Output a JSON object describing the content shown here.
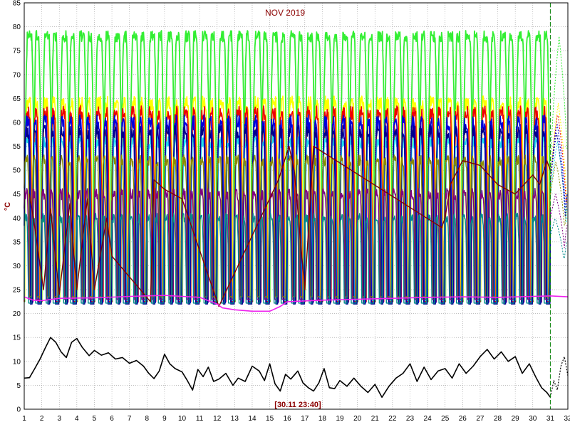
{
  "chart_data": {
    "type": "line",
    "title": "NOV 2019",
    "ylabel": "°C",
    "timestamp": "[30.11 23:40]",
    "xlim": [
      1,
      32
    ],
    "ylim": [
      0,
      85
    ],
    "x_ticks": [
      1,
      2,
      3,
      4,
      5,
      6,
      7,
      8,
      9,
      10,
      11,
      12,
      13,
      14,
      15,
      16,
      17,
      18,
      19,
      20,
      21,
      22,
      23,
      24,
      25,
      26,
      27,
      28,
      29,
      30,
      31,
      32
    ],
    "y_ticks": [
      0,
      5,
      10,
      15,
      20,
      25,
      30,
      35,
      40,
      45,
      50,
      55,
      60,
      65,
      70,
      75,
      80,
      85
    ],
    "grid": true,
    "grid_style": "dotted",
    "cursor_x": 31,
    "colors": {
      "frame": "#000000",
      "grid": "#9a9a9a",
      "cursor": "#008000"
    },
    "series": [
      {
        "color": "#33ee33",
        "base": 22.5,
        "peak": 78,
        "width": 0.55,
        "noise": 1.2,
        "lw": 1.8,
        "phase": 0.0
      },
      {
        "color": "#ffff00",
        "base": 23,
        "peak": 64,
        "width": 0.45,
        "noise": 1.5,
        "lw": 1.6,
        "phase": 0.05
      },
      {
        "color": "#ee0000",
        "base": 22.5,
        "peak": 62,
        "width": 0.42,
        "noise": 1.5,
        "lw": 1.6,
        "phase": 0.08
      },
      {
        "color": "#22ddee",
        "base": 22.8,
        "peak": 56,
        "width": 0.4,
        "noise": 1.4,
        "lw": 1.6,
        "phase": 0.1
      },
      {
        "color": "#0000dd",
        "base": 22.3,
        "peak": 60,
        "width": 0.38,
        "noise": 1.6,
        "lw": 1.6,
        "phase": 0.12
      },
      {
        "color": "#00008b",
        "base": 22,
        "peak": 58,
        "width": 0.36,
        "noise": 1.4,
        "lw": 1.4,
        "phase": 0.14
      },
      {
        "color": "#8b8b00",
        "base": 23.5,
        "peak": 52,
        "width": 0.35,
        "noise": 1.2,
        "lw": 1.4,
        "phase": 0.18
      },
      {
        "color": "#800080",
        "base": 23,
        "peak": 45,
        "width": 0.33,
        "noise": 1.2,
        "lw": 1.4,
        "phase": 0.2
      },
      {
        "color": "#008b8b",
        "base": 22.2,
        "peak": 40,
        "width": 0.3,
        "noise": 1.0,
        "lw": 1.4,
        "phase": 0.22
      }
    ],
    "flat_series": {
      "color": "#ee22ee",
      "points": [
        [
          1,
          23.5
        ],
        [
          1.5,
          22.8
        ],
        [
          2,
          22.7
        ],
        [
          3,
          23.2
        ],
        [
          5,
          23.3
        ],
        [
          7,
          23.6
        ],
        [
          9,
          23.8
        ],
        [
          11,
          23.4
        ],
        [
          12,
          22
        ],
        [
          12.3,
          21.2
        ],
        [
          13,
          20.8
        ],
        [
          14,
          20.5
        ],
        [
          15,
          20.5
        ],
        [
          15.6,
          21.5
        ],
        [
          16,
          22.5
        ],
        [
          18,
          22.8
        ],
        [
          20,
          23
        ],
        [
          22,
          23.2
        ],
        [
          24,
          23.4
        ],
        [
          26,
          23.5
        ],
        [
          28,
          23.4
        ],
        [
          30,
          23.6
        ],
        [
          31,
          23.7
        ],
        [
          32,
          23.5
        ]
      ]
    },
    "maroon_series": {
      "color": "#800000",
      "points": [
        [
          1.3,
          45
        ],
        [
          1.6,
          38
        ],
        [
          2.1,
          25
        ],
        [
          2.5,
          42
        ],
        [
          3,
          24
        ],
        [
          3.6,
          43
        ],
        [
          4,
          25
        ],
        [
          4.6,
          44
        ],
        [
          5,
          25
        ],
        [
          5.7,
          40
        ],
        [
          6,
          32
        ],
        [
          8.2,
          22.5
        ],
        [
          8.4,
          48
        ],
        [
          9,
          46
        ],
        [
          10,
          44
        ],
        [
          12.1,
          21.5
        ],
        [
          15.5,
          48
        ],
        [
          16.1,
          55
        ],
        [
          16.4,
          50
        ],
        [
          17,
          25
        ],
        [
          17.5,
          55
        ],
        [
          24.8,
          38
        ],
        [
          25,
          40
        ],
        [
          25.3,
          47
        ],
        [
          26,
          52
        ],
        [
          27,
          51
        ],
        [
          28,
          47
        ],
        [
          29,
          45
        ],
        [
          30,
          49
        ],
        [
          30.4,
          47
        ],
        [
          30.8,
          52
        ],
        [
          31,
          50
        ]
      ]
    },
    "outside_temp": {
      "color": "#000000",
      "points": [
        [
          1,
          6.5
        ],
        [
          1.3,
          6.6
        ],
        [
          1.6,
          8.5
        ],
        [
          1.9,
          10.5
        ],
        [
          2.2,
          12.8
        ],
        [
          2.5,
          15
        ],
        [
          2.8,
          14
        ],
        [
          3.1,
          12
        ],
        [
          3.4,
          10.8
        ],
        [
          3.7,
          14
        ],
        [
          4,
          14.8
        ],
        [
          4.3,
          13
        ],
        [
          4.7,
          11.2
        ],
        [
          5,
          12.3
        ],
        [
          5.4,
          11.3
        ],
        [
          5.8,
          11.8
        ],
        [
          6.2,
          10.5
        ],
        [
          6.6,
          10.8
        ],
        [
          7,
          9.6
        ],
        [
          7.4,
          10.2
        ],
        [
          7.8,
          9
        ],
        [
          8.1,
          7.5
        ],
        [
          8.4,
          6.4
        ],
        [
          8.7,
          8
        ],
        [
          9,
          11.5
        ],
        [
          9.3,
          9.5
        ],
        [
          9.6,
          8.5
        ],
        [
          10,
          7.8
        ],
        [
          10.3,
          6
        ],
        [
          10.6,
          4
        ],
        [
          10.9,
          8.3
        ],
        [
          11.2,
          6.8
        ],
        [
          11.5,
          8.8
        ],
        [
          11.8,
          5.8
        ],
        [
          12.1,
          6.3
        ],
        [
          12.5,
          7.5
        ],
        [
          12.9,
          5
        ],
        [
          13.2,
          6.5
        ],
        [
          13.6,
          5.8
        ],
        [
          14,
          9
        ],
        [
          14.4,
          8
        ],
        [
          14.7,
          6
        ],
        [
          15,
          9.5
        ],
        [
          15.3,
          5.3
        ],
        [
          15.6,
          3.8
        ],
        [
          15.9,
          7.3
        ],
        [
          16.2,
          6.3
        ],
        [
          16.6,
          8
        ],
        [
          16.9,
          5.5
        ],
        [
          17.2,
          4.5
        ],
        [
          17.5,
          3.8
        ],
        [
          17.8,
          5.5
        ],
        [
          18.1,
          8.5
        ],
        [
          18.4,
          4.5
        ],
        [
          18.7,
          4.3
        ],
        [
          19,
          6
        ],
        [
          19.4,
          4.8
        ],
        [
          19.8,
          6.5
        ],
        [
          20.2,
          4.8
        ],
        [
          20.6,
          3.5
        ],
        [
          21,
          5.2
        ],
        [
          21.4,
          2.5
        ],
        [
          21.8,
          4.8
        ],
        [
          22.2,
          6.5
        ],
        [
          22.6,
          7.5
        ],
        [
          23,
          9.5
        ],
        [
          23.4,
          5.8
        ],
        [
          23.8,
          8.8
        ],
        [
          24.2,
          6.2
        ],
        [
          24.6,
          8
        ],
        [
          25,
          8.5
        ],
        [
          25.4,
          6.5
        ],
        [
          25.8,
          9.5
        ],
        [
          26.2,
          7.5
        ],
        [
          26.6,
          9
        ],
        [
          27,
          11
        ],
        [
          27.4,
          12.5
        ],
        [
          27.8,
          10.5
        ],
        [
          28.2,
          12
        ],
        [
          28.6,
          10
        ],
        [
          29,
          11
        ],
        [
          29.4,
          7.5
        ],
        [
          29.8,
          9.5
        ],
        [
          30.2,
          6.5
        ],
        [
          30.5,
          4.5
        ],
        [
          30.8,
          3.5
        ],
        [
          31,
          2.5
        ]
      ]
    },
    "forecast_temp": {
      "color": "#000000",
      "points": [
        [
          31,
          2.5
        ],
        [
          31.2,
          6
        ],
        [
          31.4,
          4
        ],
        [
          31.6,
          9
        ],
        [
          31.8,
          11
        ],
        [
          32,
          7
        ]
      ]
    }
  }
}
